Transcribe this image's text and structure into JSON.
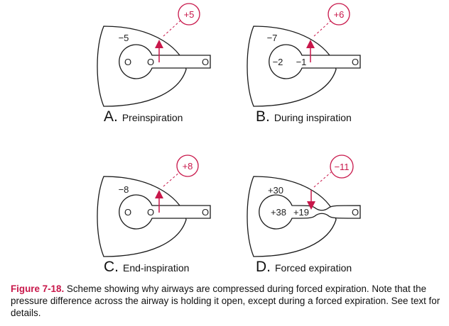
{
  "panels": [
    {
      "letter": "A.",
      "title": "Preinspiration",
      "pleural": "−5",
      "alveolar": "O",
      "airway": "O",
      "mouth": "O",
      "transmural": "+5",
      "arrow_direction": "out",
      "narrowed": false
    },
    {
      "letter": "B.",
      "title": "During inspiration",
      "pleural": "−7",
      "alveolar": "−2",
      "airway": "−1",
      "mouth": "O",
      "transmural": "+6",
      "arrow_direction": "out",
      "narrowed": false
    },
    {
      "letter": "C.",
      "title": "End-inspiration",
      "pleural": "−8",
      "alveolar": "O",
      "airway": "O",
      "mouth": "O",
      "transmural": "+8",
      "arrow_direction": "out",
      "narrowed": false
    },
    {
      "letter": "D.",
      "title": "Forced expiration",
      "pleural": "+30",
      "alveolar": "+38",
      "airway": "+19",
      "mouth": "O",
      "transmural": "−11",
      "arrow_direction": "in",
      "narrowed": true
    }
  ],
  "caption": {
    "figure_number": "Figure 7-18.",
    "text": "Scheme showing why airways are compressed during forced expiration. Note that the pressure difference across the airway is holding it open, except during a forced expiration. See text for details."
  },
  "colors": {
    "accent": "#c8174a",
    "line": "#1a1a1a"
  }
}
